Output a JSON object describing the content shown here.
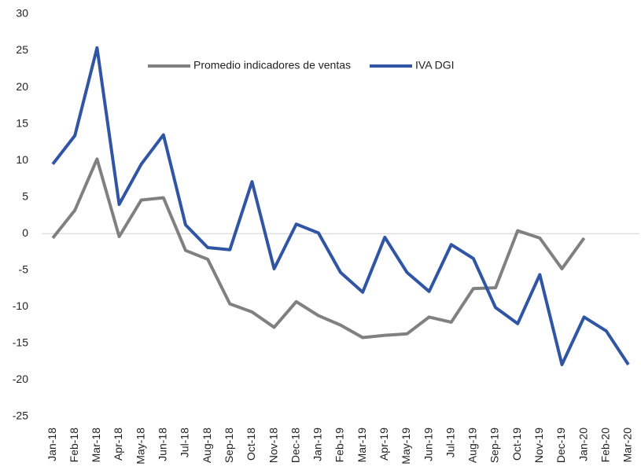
{
  "chart_data": {
    "type": "line",
    "categories": [
      "Jan-18",
      "Feb-18",
      "Mar-18",
      "Apr-18",
      "May-18",
      "Jun-18",
      "Jul-18",
      "Aug-18",
      "Sep-18",
      "Oct-18",
      "Nov-18",
      "Dec-18",
      "Jan-19",
      "Feb-19",
      "Mar-19",
      "Apr-19",
      "May-19",
      "Jun-19",
      "Jul-19",
      "Aug-19",
      "Sep-19",
      "Oct-19",
      "Nov-19",
      "Dec-19",
      "Jan-20",
      "Feb-20",
      "Mar-20"
    ],
    "series": [
      {
        "name": "Promedio indicadores de ventas",
        "color": "#808080",
        "values": [
          -0.6,
          3.2,
          10.2,
          -0.4,
          4.6,
          4.9,
          -2.3,
          -3.5,
          -9.6,
          -10.7,
          -12.8,
          -9.3,
          -11.2,
          -12.5,
          -14.2,
          -13.9,
          -13.7,
          -11.4,
          -12.1,
          -7.5,
          -7.4,
          0.4,
          -0.6,
          -4.8,
          -0.6,
          null,
          null
        ]
      },
      {
        "name": "IVA DGI",
        "color": "#2f55a4",
        "values": [
          9.5,
          13.4,
          25.4,
          4.0,
          9.5,
          13.5,
          1.2,
          -1.9,
          -2.2,
          7.1,
          -4.8,
          1.3,
          0.1,
          -5.3,
          -8.0,
          -0.5,
          -5.3,
          -7.9,
          -1.5,
          -3.4,
          -10.1,
          -12.3,
          -5.6,
          -17.9,
          -11.4,
          -13.3,
          -17.9
        ]
      }
    ],
    "ylim": [
      -25,
      30
    ],
    "yticks": [
      -25,
      -20,
      -15,
      -10,
      -5,
      0,
      5,
      10,
      15,
      20,
      25,
      30
    ],
    "grid": false,
    "legend": "top"
  }
}
